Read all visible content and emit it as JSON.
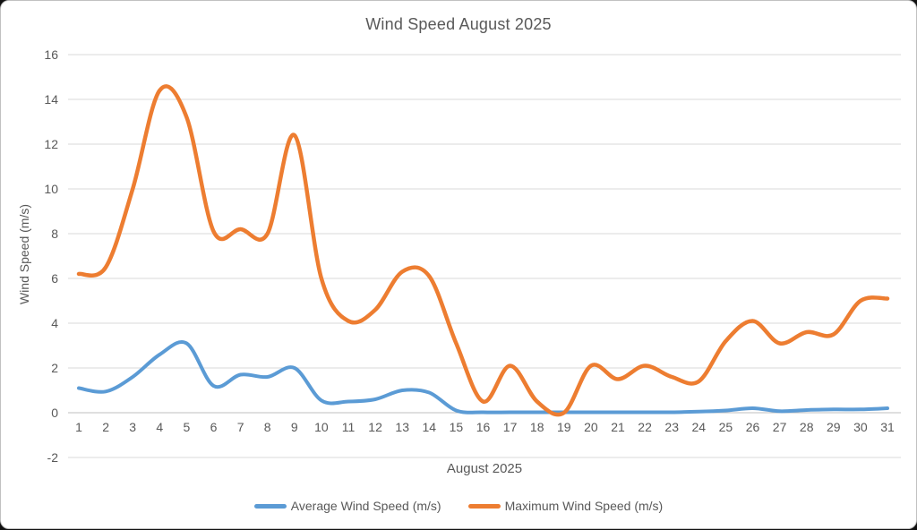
{
  "chart_data": {
    "type": "line",
    "title": "Wind Speed August 2025",
    "xlabel": "August 2025",
    "ylabel": "Wind Speed (m/s)",
    "x": [
      1,
      2,
      3,
      4,
      5,
      6,
      7,
      8,
      9,
      10,
      11,
      12,
      13,
      14,
      15,
      16,
      17,
      18,
      19,
      20,
      21,
      22,
      23,
      24,
      25,
      26,
      27,
      28,
      29,
      30,
      31
    ],
    "series": [
      {
        "name": "Average Wind Speed (m/s)",
        "color": "#5B9BD5",
        "values": [
          1.1,
          0.95,
          1.6,
          2.6,
          3.1,
          1.2,
          1.7,
          1.6,
          2.0,
          0.55,
          0.5,
          0.6,
          1.0,
          0.9,
          0.1,
          0.02,
          0.02,
          0.02,
          0.02,
          0.02,
          0.02,
          0.02,
          0.02,
          0.05,
          0.1,
          0.2,
          0.07,
          0.12,
          0.15,
          0.15,
          0.2
        ]
      },
      {
        "name": "Maximum Wind Speed (m/s)",
        "color": "#ED7D31",
        "values": [
          6.2,
          6.5,
          10.0,
          14.4,
          13.2,
          8.1,
          8.2,
          8.0,
          12.4,
          6.0,
          4.1,
          4.6,
          6.3,
          6.1,
          3.1,
          0.5,
          2.1,
          0.5,
          0.0,
          2.1,
          1.5,
          2.1,
          1.6,
          1.4,
          3.2,
          4.1,
          3.1,
          3.6,
          3.5,
          5.0,
          5.1
        ]
      }
    ],
    "ylim": [
      -2,
      16
    ],
    "ystep": 2,
    "grid": true,
    "smooth": true,
    "legend_position": "bottom",
    "colors": {
      "gridline": "#D9D9D9",
      "zero_axis": "#BFBFBF",
      "text": "#595959"
    }
  }
}
